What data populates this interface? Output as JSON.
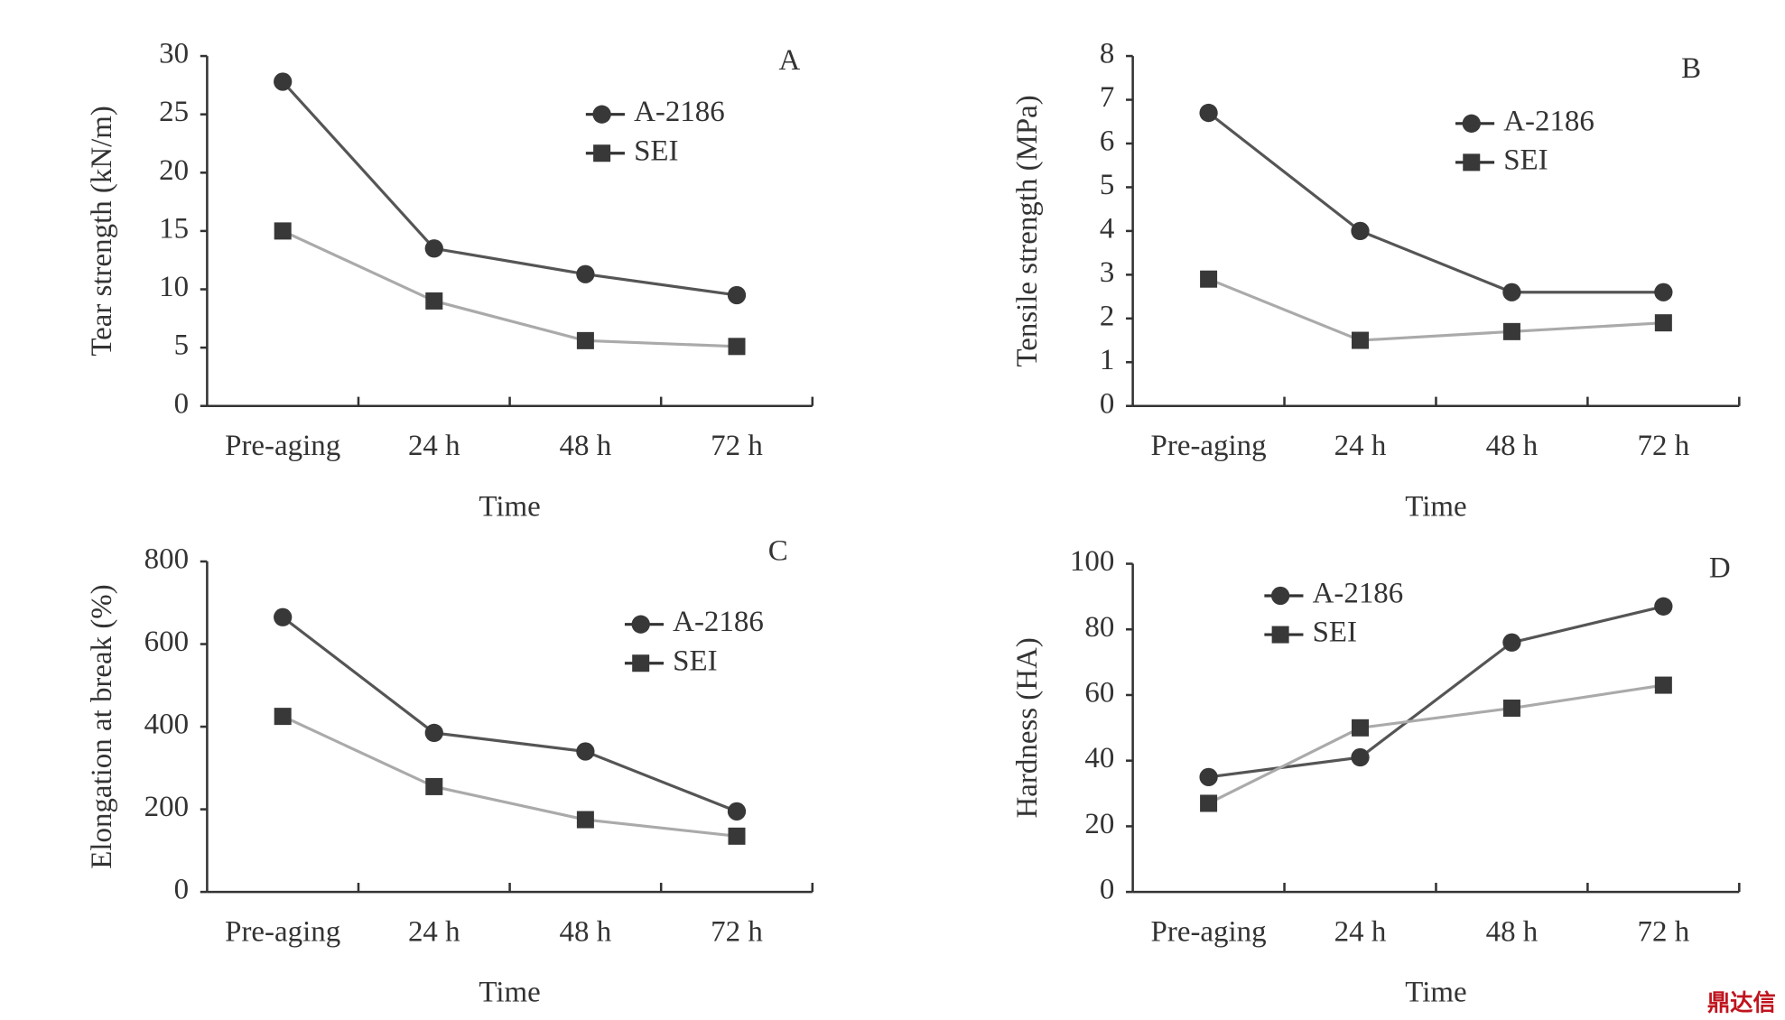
{
  "chart_data": [
    {
      "type": "line",
      "annotation": "A",
      "y_label": "Tear strength (kN/m)",
      "x_label": "Time",
      "categories": [
        "Pre-aging",
        "24 h",
        "48 h",
        "72 h"
      ],
      "series": [
        {
          "name": "A-2186",
          "color": "#383838",
          "line_color": "#555555",
          "marker": "circle",
          "values": [
            27.8,
            13.5,
            11.3,
            9.5
          ]
        },
        {
          "name": "SEI",
          "color": "#383838",
          "line_color": "#aaaaaa",
          "marker": "square",
          "values": [
            15,
            9,
            5.6,
            5.1
          ]
        }
      ],
      "ylim": [
        0,
        30
      ],
      "yticks": [
        0,
        5,
        10,
        15,
        20,
        25,
        30
      ]
    },
    {
      "type": "line",
      "annotation": "B",
      "y_label": "Tensile strength (MPa)",
      "x_label": "Time",
      "categories": [
        "Pre-aging",
        "24 h",
        "48 h",
        "72 h"
      ],
      "series": [
        {
          "name": "A-2186",
          "color": "#383838",
          "line_color": "#555555",
          "marker": "circle",
          "values": [
            6.7,
            4.0,
            2.6,
            2.6
          ]
        },
        {
          "name": "SEI",
          "color": "#383838",
          "line_color": "#aaaaaa",
          "marker": "square",
          "values": [
            2.9,
            1.5,
            1.7,
            1.9
          ]
        }
      ],
      "ylim": [
        0,
        8
      ],
      "yticks": [
        0,
        1,
        2,
        3,
        4,
        5,
        6,
        7,
        8
      ]
    },
    {
      "type": "line",
      "annotation": "C",
      "y_label": "Elongation at break (%)",
      "x_label": "Time",
      "categories": [
        "Pre-aging",
        "24 h",
        "48 h",
        "72 h"
      ],
      "series": [
        {
          "name": "A-2186",
          "color": "#383838",
          "line_color": "#555555",
          "marker": "circle",
          "values": [
            665,
            385,
            340,
            195
          ]
        },
        {
          "name": "SEI",
          "color": "#383838",
          "line_color": "#aaaaaa",
          "marker": "square",
          "values": [
            425,
            255,
            175,
            135
          ]
        }
      ],
      "ylim": [
        0,
        800
      ],
      "yticks": [
        0,
        200,
        400,
        600,
        800
      ]
    },
    {
      "type": "line",
      "annotation": "D",
      "y_label": "Hardness (HA)",
      "x_label": "Time",
      "categories": [
        "Pre-aging",
        "24 h",
        "48 h",
        "72 h"
      ],
      "series": [
        {
          "name": "A-2186",
          "color": "#383838",
          "line_color": "#555555",
          "marker": "circle",
          "values": [
            35,
            41,
            76,
            87
          ]
        },
        {
          "name": "SEI",
          "color": "#383838",
          "line_color": "#aaaaaa",
          "marker": "square",
          "values": [
            27,
            50,
            56,
            63
          ]
        }
      ],
      "ylim": [
        0,
        100
      ],
      "yticks": [
        0,
        20,
        40,
        60,
        80,
        100
      ]
    }
  ],
  "watermark": "鼎达信"
}
